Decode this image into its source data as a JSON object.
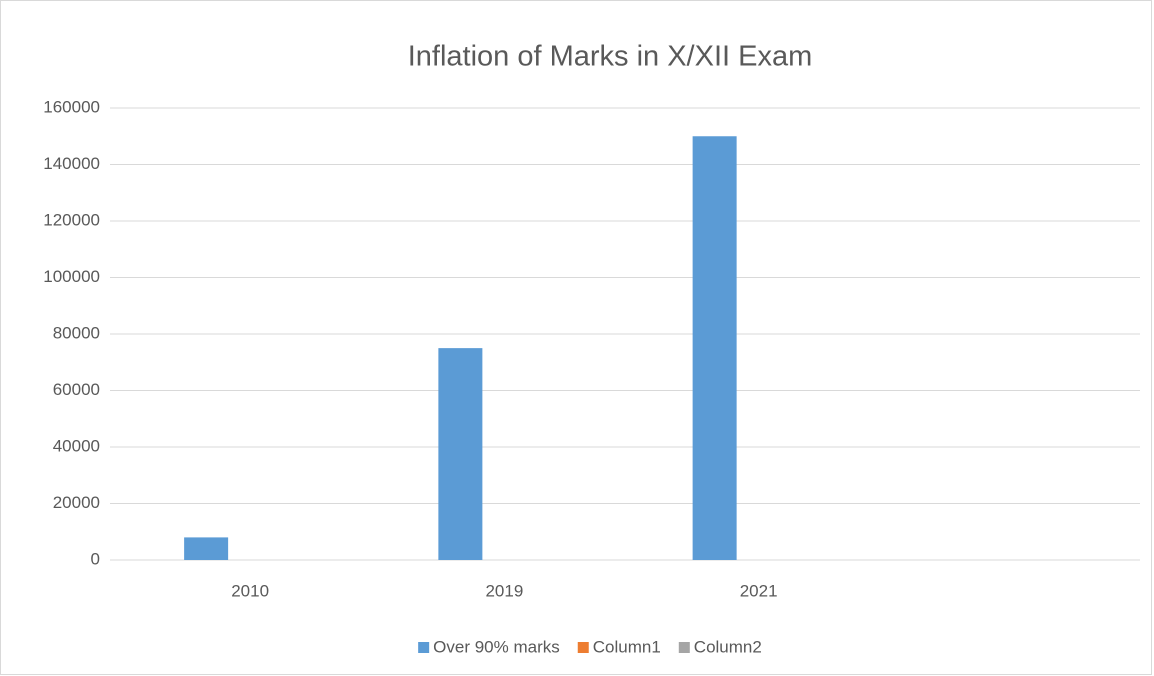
{
  "chart_data": {
    "type": "bar",
    "title": "Inflation of Marks in X/XII  Exam",
    "categories": [
      "2010",
      "2019",
      "2021",
      null
    ],
    "series": [
      {
        "name": "Over 90% marks",
        "color": "#5b9bd5",
        "values": [
          8000,
          75000,
          150000,
          null
        ]
      },
      {
        "name": "Column1",
        "color": "#ed7d31",
        "values": [
          null,
          null,
          null,
          null
        ]
      },
      {
        "name": "Column2",
        "color": "#a5a5a5",
        "values": [
          null,
          null,
          null,
          null
        ]
      }
    ],
    "ylim": [
      0,
      160000
    ],
    "yticks": [
      0,
      20000,
      40000,
      60000,
      80000,
      100000,
      120000,
      140000,
      160000
    ],
    "grid": true,
    "legend": "bottom"
  }
}
